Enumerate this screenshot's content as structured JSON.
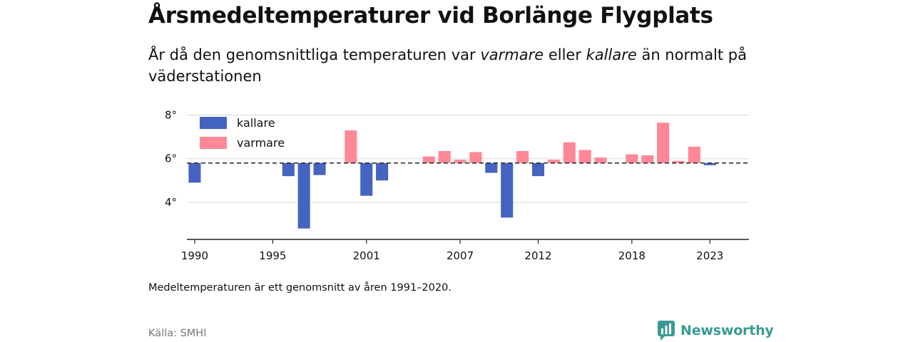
{
  "title": "Årsmedeltemperaturer vid Borlänge Flygplats",
  "subtitle": {
    "part1": "År då den genomsnittliga temperaturen var ",
    "warm_word": "varmare",
    "part2": " eller ",
    "cold_word": "kallare",
    "part3": " än normalt på väderstationen"
  },
  "note": "Medeltemperaturen är ett genomsnitt av åren 1991–2020.",
  "source": "Källa: SMHI",
  "logo": {
    "text": "Newsworthy",
    "icon": "newsworthy-logo-icon"
  },
  "colors": {
    "cold": "#4563c0",
    "warm": "#ff8896",
    "grid": "#d9d9d9",
    "axis": "#222222",
    "baseline": "#333333",
    "brand": "#3a9b92"
  },
  "chart_data": {
    "type": "bar",
    "baseline": 5.8,
    "baseline_style": "dashed",
    "ylim": [
      2.3,
      8.7
    ],
    "yticks": [
      4,
      6,
      8
    ],
    "ytick_labels": [
      "4°",
      "6°",
      "8°"
    ],
    "xticks": [
      1990,
      1995,
      2001,
      2007,
      2012,
      2018,
      2023
    ],
    "xlim": [
      1989.5,
      2025.5
    ],
    "grid": true,
    "legend": {
      "position": "top-left",
      "entries": [
        {
          "label": "kallare",
          "color": "#4563c0"
        },
        {
          "label": "varmare",
          "color": "#ff8896"
        }
      ]
    },
    "x": [
      1990,
      1991,
      1992,
      1993,
      1994,
      1995,
      1996,
      1997,
      1998,
      1999,
      2000,
      2001,
      2002,
      2003,
      2004,
      2005,
      2006,
      2007,
      2008,
      2009,
      2010,
      2011,
      2012,
      2013,
      2014,
      2015,
      2016,
      2017,
      2018,
      2019,
      2020,
      2021,
      2022,
      2023
    ],
    "values": [
      4.9,
      null,
      null,
      null,
      null,
      null,
      5.2,
      2.8,
      5.25,
      null,
      7.3,
      4.3,
      5.0,
      null,
      null,
      6.1,
      6.35,
      5.95,
      6.3,
      5.35,
      3.3,
      6.35,
      5.2,
      5.95,
      6.75,
      6.4,
      6.05,
      null,
      6.2,
      6.15,
      7.65,
      5.9,
      6.55,
      5.7
    ]
  }
}
